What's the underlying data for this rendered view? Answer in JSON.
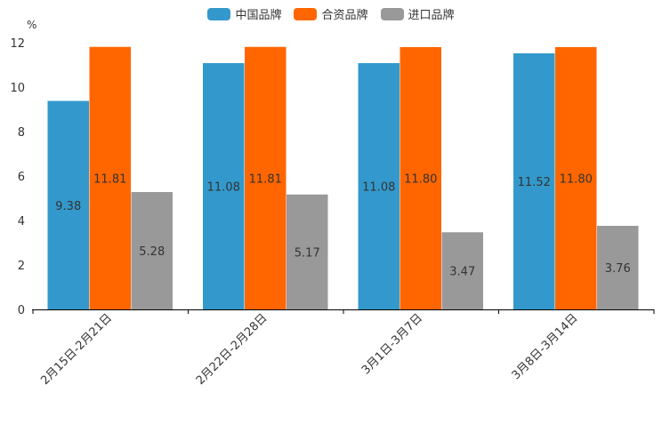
{
  "chart_data": {
    "type": "bar",
    "unit_label": "%",
    "categories": [
      "2月15日-2月21日",
      "2月22日-2月28日",
      "3月1日-3月7日",
      "3月8日-3月14日"
    ],
    "series": [
      {
        "name": "中国品牌",
        "color": "#3399cc",
        "values": [
          9.38,
          11.08,
          11.08,
          11.52
        ],
        "labels": [
          "9.38",
          "11.08",
          "11.08",
          "11.52"
        ]
      },
      {
        "name": "合资品牌",
        "color": "#ff6600",
        "values": [
          11.81,
          11.81,
          11.8,
          11.8
        ],
        "labels": [
          "11.81",
          "11.81",
          "11.80",
          "11.80"
        ]
      },
      {
        "name": "进口品牌",
        "color": "#999999",
        "values": [
          5.28,
          5.17,
          3.47,
          3.76
        ],
        "labels": [
          "5.28",
          "5.17",
          "3.47",
          "3.76"
        ]
      }
    ],
    "ylim": [
      0,
      12
    ],
    "yticks": [
      "0",
      "2",
      "4",
      "6",
      "8",
      "10",
      "12"
    ],
    "grid": false,
    "legend_position": "top-center"
  }
}
